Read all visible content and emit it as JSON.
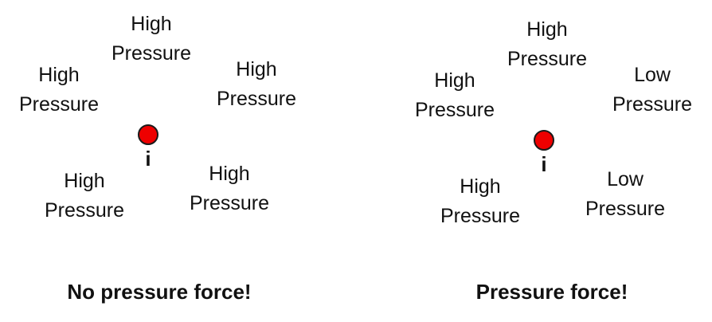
{
  "panels": [
    {
      "labels": [
        {
          "line1": "High",
          "line2": "Pressure"
        },
        {
          "line1": "High",
          "line2": "Pressure"
        },
        {
          "line1": "High",
          "line2": "Pressure"
        },
        {
          "line1": "High",
          "line2": "Pressure"
        },
        {
          "line1": "High",
          "line2": "Pressure"
        }
      ],
      "particle_label": "i",
      "caption": "No pressure force!"
    },
    {
      "labels": [
        {
          "line1": "High",
          "line2": "Pressure"
        },
        {
          "line1": "High",
          "line2": "Pressure"
        },
        {
          "line1": "Low",
          "line2": "Pressure"
        },
        {
          "line1": "High",
          "line2": "Pressure"
        },
        {
          "line1": "Low",
          "line2": "Pressure"
        }
      ],
      "particle_label": "i",
      "caption": "Pressure force!"
    }
  ],
  "colors": {
    "particle_fill": "#ee0000",
    "particle_stroke": "#1a1a1a",
    "text": "#111111"
  }
}
